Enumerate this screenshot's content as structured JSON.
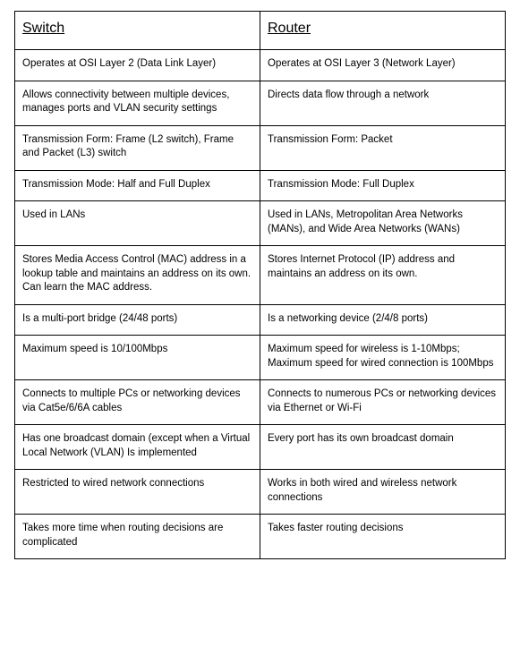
{
  "table": {
    "type": "table",
    "background_color": "#ffffff",
    "border_color": "#000000",
    "text_color": "#000000",
    "header_fontsize": 16,
    "cell_fontsize": 11.5,
    "font_family": "Arial",
    "columns": [
      {
        "label": "Switch",
        "underline": true
      },
      {
        "label": "Router",
        "underline": true
      }
    ],
    "rows": [
      [
        "Operates at OSI Layer 2 (Data Link Layer)",
        "Operates at OSI Layer 3 (Network  Layer)"
      ],
      [
        "Allows connectivity between multiple devices, manages ports and VLAN security settings",
        "Directs data flow through a network"
      ],
      [
        "Transmission Form: Frame (L2 switch), Frame and Packet (L3) switch",
        "Transmission Form: Packet"
      ],
      [
        "Transmission Mode: Half and Full Duplex",
        " Transmission Mode: Full Duplex"
      ],
      [
        "Used in LANs",
        "Used in LANs, Metropolitan Area Networks (MANs), and Wide Area Networks (WANs)"
      ],
      [
        "Stores Media Access Control (MAC) address in a lookup table and maintains an address on its own. Can learn the MAC address.",
        "Stores Internet Protocol (IP) address and maintains an address on its own."
      ],
      [
        "Is a multi-port bridge (24/48 ports)",
        "Is a networking device (2/4/8 ports)"
      ],
      [
        "Maximum speed is 10/100Mbps",
        "Maximum speed for wireless is 1-10Mbps; Maximum speed for wired connection is 100Mbps"
      ],
      [
        "Connects to multiple PCs or networking devices via Cat5e/6/6A cables",
        "Connects to numerous PCs or networking devices via Ethernet or Wi-Fi"
      ],
      [
        "Has one broadcast domain (except when a Virtual Local Network (VLAN) Is implemented",
        "Every port has its own broadcast domain"
      ],
      [
        "Restricted to wired network connections",
        "Works in both wired and wireless network connections"
      ],
      [
        "Takes more time when routing decisions are complicated",
        "Takes faster routing decisions"
      ]
    ]
  }
}
